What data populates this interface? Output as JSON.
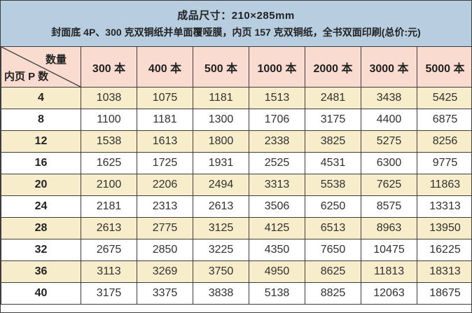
{
  "banner": {
    "line1": "成品尺寸：210×285mm",
    "line2": "封面底 4P、300 克双铜纸并单面覆哑膜，内页 157 克双铜纸，全书双面印刷(总价:元)"
  },
  "table": {
    "corner": {
      "top_label": "数量",
      "bottom_label": "内页 P 数"
    },
    "quantity_headers": [
      "300 本",
      "400 本",
      "500 本",
      "1000 本",
      "2000 本",
      "3000 本",
      "5000 本"
    ],
    "rows": [
      {
        "pages": "4",
        "prices": [
          1038,
          1075,
          1181,
          1513,
          2481,
          3438,
          5425
        ]
      },
      {
        "pages": "8",
        "prices": [
          1100,
          1181,
          1300,
          1706,
          3175,
          4400,
          6875
        ]
      },
      {
        "pages": "12",
        "prices": [
          1538,
          1613,
          1800,
          2338,
          3825,
          5275,
          8256
        ]
      },
      {
        "pages": "16",
        "prices": [
          1625,
          1725,
          1931,
          2525,
          4531,
          6300,
          9775
        ]
      },
      {
        "pages": "20",
        "prices": [
          2100,
          2206,
          2494,
          3313,
          5538,
          7625,
          11863
        ]
      },
      {
        "pages": "24",
        "prices": [
          2181,
          2313,
          2613,
          3506,
          6250,
          8575,
          13313
        ]
      },
      {
        "pages": "28",
        "prices": [
          2613,
          2775,
          3125,
          4125,
          6513,
          8963,
          13950
        ]
      },
      {
        "pages": "32",
        "prices": [
          2675,
          2850,
          3225,
          4350,
          7650,
          10475,
          16225
        ]
      },
      {
        "pages": "36",
        "prices": [
          3113,
          3269,
          3750,
          4950,
          8625,
          11813,
          18313
        ]
      },
      {
        "pages": "40",
        "prices": [
          3175,
          3375,
          3838,
          5138,
          8825,
          12063,
          18675
        ]
      }
    ]
  },
  "colors": {
    "banner_bg": "#b7cde0",
    "header_bg": "#fadbd0",
    "stripe_bg": "#f8edca",
    "row_bg": "#ffffff",
    "border": "#3d3d3d",
    "text": "#222222"
  }
}
